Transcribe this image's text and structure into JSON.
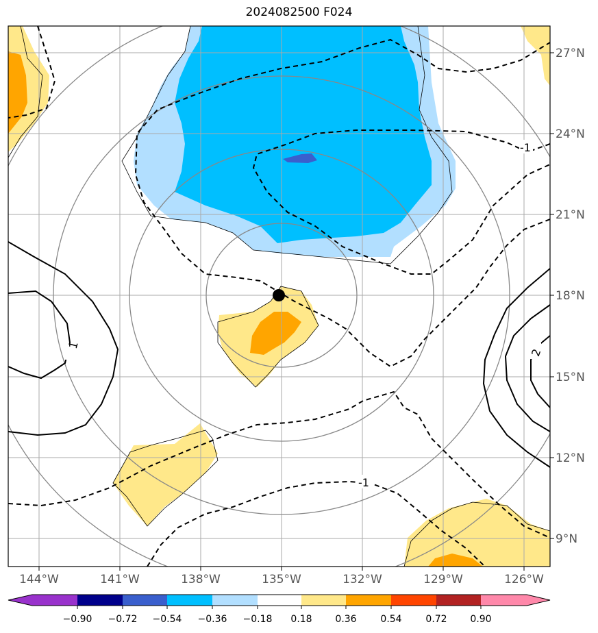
{
  "title": "2024082500 F024",
  "map": {
    "lon_ticks": [
      "144°W",
      "141°W",
      "138°W",
      "135°W",
      "132°W",
      "129°W",
      "126°W"
    ],
    "lat_ticks": [
      "27°N",
      "24°N",
      "21°N",
      "18°N",
      "15°N",
      "12°N",
      "9°N"
    ],
    "storm_center": {
      "lon": -135.0,
      "lat": 18.0
    },
    "range_rings": 4,
    "contour_labels": [
      "-1",
      "-1",
      "1",
      "2"
    ]
  },
  "colorbar": {
    "ticks": [
      "−0.90",
      "−0.72",
      "−0.54",
      "−0.36",
      "−0.18",
      "0.18",
      "0.36",
      "0.54",
      "0.72",
      "0.90"
    ],
    "colors": [
      "#9932cc",
      "#00008b",
      "#3a5fcd",
      "#00bfff",
      "#b2dfff",
      "#ffffff",
      "#ffe88a",
      "#ffa500",
      "#ff4500",
      "#b22222",
      "#ff88aa"
    ]
  }
}
